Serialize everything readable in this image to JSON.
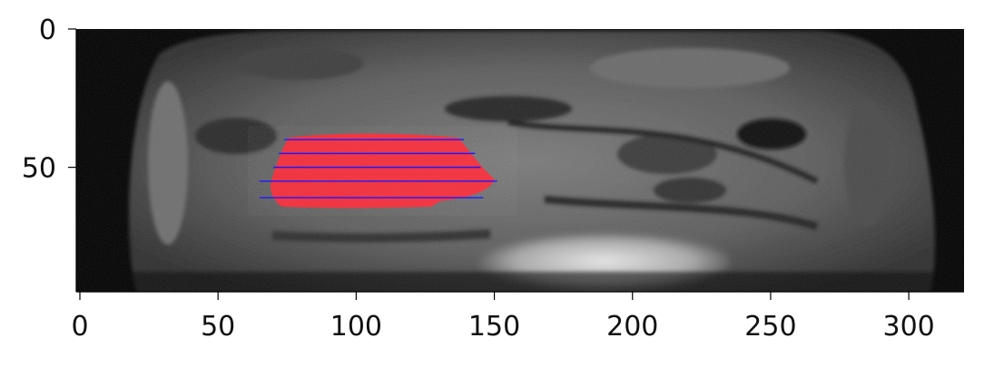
{
  "image": {
    "description_hint": "grayscale MRI slice with red segmentation mask and blue horizontal scan lines",
    "mask_color": "#ff2b3a",
    "line_color": "#1a1aff",
    "background": "#000000"
  },
  "axes": {
    "x_ticks": [
      {
        "label": "0",
        "value": 0
      },
      {
        "label": "50",
        "value": 50
      },
      {
        "label": "100",
        "value": 100
      },
      {
        "label": "150",
        "value": 150
      },
      {
        "label": "200",
        "value": 200
      },
      {
        "label": "250",
        "value": 250
      },
      {
        "label": "300",
        "value": 300
      }
    ],
    "y_ticks": [
      {
        "label": "0",
        "value": 0
      },
      {
        "label": "50",
        "value": 50
      }
    ],
    "xlim": [
      0,
      320
    ],
    "ylim": [
      95,
      0
    ]
  },
  "overlay": {
    "scan_lines": [
      {
        "y": 40,
        "x_start": 74,
        "x_end": 139
      },
      {
        "y": 45,
        "x_start": 72,
        "x_end": 143
      },
      {
        "y": 50,
        "x_start": 70,
        "x_end": 145
      },
      {
        "y": 55,
        "x_start": 65,
        "x_end": 151
      },
      {
        "y": 61,
        "x_start": 65,
        "x_end": 146
      }
    ]
  }
}
